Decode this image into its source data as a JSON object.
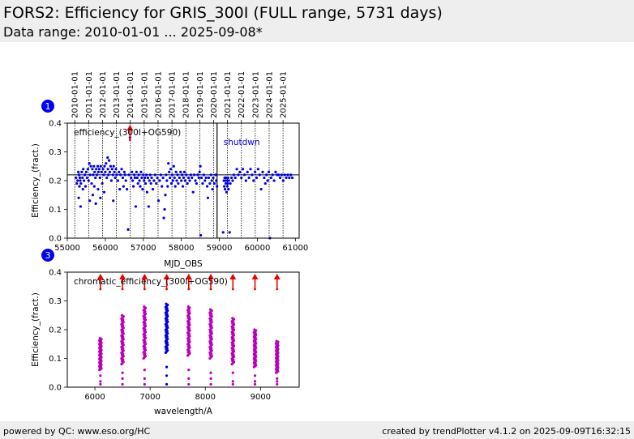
{
  "header": {
    "title": "FORS2: Efficiency for GRIS_300I (FULL range, 5731 days)",
    "subtitle": "Data range: 2010-01-01 ... 2025-09-08*"
  },
  "footer": {
    "left": "powered by QC: www.eso.org/HC",
    "right": "created by trendPlotter v4.1.2 on 2025-09-09T16:32:15"
  },
  "colors": {
    "blue": "#0000dd",
    "magenta": "#bb00bb",
    "red": "#ee0000",
    "badge": "#0000ee"
  },
  "chart_data": [
    {
      "type": "scatter",
      "badge": "1",
      "annotation": "efficiency_(300I+OG590)",
      "event_label": "shutdwn",
      "xlabel": "MJD_OBS",
      "ylabel": "Efficiency_(fract.)",
      "xlim": [
        55000,
        61100
      ],
      "ylim": [
        0,
        0.4
      ],
      "xticks": [
        55000,
        56000,
        57000,
        58000,
        59000,
        60000,
        61000
      ],
      "yticks": [
        0.0,
        0.1,
        0.2,
        0.3,
        0.4
      ],
      "reference_line": 0.22,
      "event_line_mjd": 58940,
      "upper_outlier_mjd": 56650,
      "year_markers": [
        {
          "label": "2010-01-01",
          "mjd": 55197
        },
        {
          "label": "2011-01-01",
          "mjd": 55562
        },
        {
          "label": "2012-01-01",
          "mjd": 55927
        },
        {
          "label": "2013-01-01",
          "mjd": 56293
        },
        {
          "label": "2014-01-01",
          "mjd": 56658
        },
        {
          "label": "2015-01-01",
          "mjd": 57023
        },
        {
          "label": "2016-01-01",
          "mjd": 57388
        },
        {
          "label": "2017-01-01",
          "mjd": 57754
        },
        {
          "label": "2018-01-01",
          "mjd": 58119
        },
        {
          "label": "2019-01-01",
          "mjd": 58484
        },
        {
          "label": "2020-01-01",
          "mjd": 58849
        },
        {
          "label": "2021-01-01",
          "mjd": 59215
        },
        {
          "label": "2022-01-01",
          "mjd": 59580
        },
        {
          "label": "2023-01-01",
          "mjd": 59945
        },
        {
          "label": "2024-01-01",
          "mjd": 60310
        },
        {
          "label": "2025-01-01",
          "mjd": 60676
        }
      ],
      "points": [
        [
          55230,
          0.21
        ],
        [
          55250,
          0.19
        ],
        [
          55270,
          0.2
        ],
        [
          55290,
          0.23
        ],
        [
          55300,
          0.14
        ],
        [
          55310,
          0.22
        ],
        [
          55320,
          0.18
        ],
        [
          55330,
          0.21
        ],
        [
          55340,
          0.2
        ],
        [
          55350,
          0.11
        ],
        [
          55360,
          0.19
        ],
        [
          55380,
          0.23
        ],
        [
          55400,
          0.21
        ],
        [
          55410,
          0.17
        ],
        [
          55420,
          0.24
        ],
        [
          55440,
          0.2
        ],
        [
          55460,
          0.22
        ],
        [
          55480,
          0.18
        ],
        [
          55500,
          0.23
        ],
        [
          55520,
          0.21
        ],
        [
          55540,
          0.24
        ],
        [
          55560,
          0.2
        ],
        [
          55580,
          0.26
        ],
        [
          55590,
          0.13
        ],
        [
          55600,
          0.22
        ],
        [
          55620,
          0.25
        ],
        [
          55640,
          0.19
        ],
        [
          55660,
          0.24
        ],
        [
          55670,
          0.15
        ],
        [
          55680,
          0.22
        ],
        [
          55700,
          0.25
        ],
        [
          55710,
          0.18
        ],
        [
          55720,
          0.23
        ],
        [
          55740,
          0.21
        ],
        [
          55750,
          0.12
        ],
        [
          55760,
          0.24
        ],
        [
          55780,
          0.22
        ],
        [
          55800,
          0.25
        ],
        [
          55810,
          0.17
        ],
        [
          55820,
          0.23
        ],
        [
          55840,
          0.24
        ],
        [
          55860,
          0.21
        ],
        [
          55870,
          0.14
        ],
        [
          55880,
          0.25
        ],
        [
          55900,
          0.23
        ],
        [
          55920,
          0.19
        ],
        [
          55940,
          0.24
        ],
        [
          55960,
          0.22
        ],
        [
          55970,
          0.16
        ],
        [
          55980,
          0.25
        ],
        [
          56000,
          0.23
        ],
        [
          56020,
          0.26
        ],
        [
          56040,
          0.21
        ],
        [
          56060,
          0.28
        ],
        [
          56070,
          0.24
        ],
        [
          56080,
          0.22
        ],
        [
          56100,
          0.27
        ],
        [
          56120,
          0.23
        ],
        [
          56140,
          0.25
        ],
        [
          56160,
          0.2
        ],
        [
          56180,
          0.24
        ],
        [
          56200,
          0.22
        ],
        [
          56210,
          0.13
        ],
        [
          56220,
          0.25
        ],
        [
          56240,
          0.23
        ],
        [
          56260,
          0.21
        ],
        [
          56280,
          0.24
        ],
        [
          56300,
          0.22
        ],
        [
          56330,
          0.2
        ],
        [
          56360,
          0.23
        ],
        [
          56380,
          0.17
        ],
        [
          56400,
          0.22
        ],
        [
          56430,
          0.24
        ],
        [
          56460,
          0.21
        ],
        [
          56480,
          0.18
        ],
        [
          56500,
          0.23
        ],
        [
          56520,
          0.22
        ],
        [
          56540,
          0.2
        ],
        [
          56570,
          0.17
        ],
        [
          56600,
          0.03
        ],
        [
          56620,
          0.22
        ],
        [
          56650,
          0.35
        ],
        [
          56680,
          0.21
        ],
        [
          56700,
          0.23
        ],
        [
          56720,
          0.2
        ],
        [
          56740,
          0.18
        ],
        [
          56760,
          0.22
        ],
        [
          56780,
          0.21
        ],
        [
          56800,
          0.11
        ],
        [
          56820,
          0.23
        ],
        [
          56840,
          0.21
        ],
        [
          56860,
          0.19
        ],
        [
          56880,
          0.22
        ],
        [
          56900,
          0.2
        ],
        [
          56920,
          0.18
        ],
        [
          56940,
          0.23
        ],
        [
          56960,
          0.21
        ],
        [
          56980,
          0.17
        ],
        [
          57000,
          0.22
        ],
        [
          57020,
          0.2
        ],
        [
          57040,
          0.21
        ],
        [
          57060,
          0.19
        ],
        [
          57080,
          0.22
        ],
        [
          57100,
          0.16
        ],
        [
          57120,
          0.21
        ],
        [
          57140,
          0.11
        ],
        [
          57160,
          0.2
        ],
        [
          57180,
          0.22
        ],
        [
          57200,
          0.19
        ],
        [
          57220,
          0.21
        ],
        [
          57250,
          0.17
        ],
        [
          57280,
          0.2
        ],
        [
          57310,
          0.22
        ],
        [
          57340,
          0.19
        ],
        [
          57370,
          0.21
        ],
        [
          57400,
          0.13
        ],
        [
          57430,
          0.2
        ],
        [
          57460,
          0.22
        ],
        [
          57490,
          0.18
        ],
        [
          57520,
          0.21
        ],
        [
          57540,
          0.07
        ],
        [
          57560,
          0.1
        ],
        [
          57580,
          0.15
        ],
        [
          57600,
          0.22
        ],
        [
          57620,
          0.2
        ],
        [
          57640,
          0.18
        ],
        [
          57660,
          0.26
        ],
        [
          57680,
          0.23
        ],
        [
          57700,
          0.21
        ],
        [
          57720,
          0.24
        ],
        [
          57740,
          0.19
        ],
        [
          57760,
          0.22
        ],
        [
          57780,
          0.2
        ],
        [
          57800,
          0.25
        ],
        [
          57820,
          0.21
        ],
        [
          57840,
          0.18
        ],
        [
          57860,
          0.23
        ],
        [
          57880,
          0.2
        ],
        [
          57900,
          0.22
        ],
        [
          57920,
          0.19
        ],
        [
          57950,
          0.21
        ],
        [
          57980,
          0.23
        ],
        [
          58000,
          0.2
        ],
        [
          58020,
          0.22
        ],
        [
          58040,
          0.18
        ],
        [
          58060,
          0.21
        ],
        [
          58080,
          0.23
        ],
        [
          58100,
          0.2
        ],
        [
          58130,
          0.22
        ],
        [
          58160,
          0.19
        ],
        [
          58190,
          0.21
        ],
        [
          58220,
          0.2
        ],
        [
          58250,
          0.22
        ],
        [
          58280,
          0.21
        ],
        [
          58310,
          0.16
        ],
        [
          58340,
          0.22
        ],
        [
          58370,
          0.2
        ],
        [
          58400,
          0.19
        ],
        [
          58430,
          0.22
        ],
        [
          58460,
          0.21
        ],
        [
          58480,
          0.23
        ],
        [
          58500,
          0.25
        ],
        [
          58510,
          0.01
        ],
        [
          58530,
          0.21
        ],
        [
          58560,
          0.19
        ],
        [
          58590,
          0.22
        ],
        [
          58620,
          0.2
        ],
        [
          58650,
          0.21
        ],
        [
          58680,
          0.18
        ],
        [
          58700,
          0.14
        ],
        [
          58720,
          0.21
        ],
        [
          58750,
          0.19
        ],
        [
          58780,
          0.22
        ],
        [
          58800,
          0.2
        ],
        [
          58820,
          0.17
        ],
        [
          58840,
          0.21
        ],
        [
          58870,
          0.19
        ],
        [
          58900,
          0.22
        ],
        [
          58920,
          0.2
        ],
        [
          58940,
          0.18
        ],
        [
          59100,
          0.02
        ],
        [
          59120,
          0.2
        ],
        [
          59130,
          0.18
        ],
        [
          59140,
          0.21
        ],
        [
          59150,
          0.17
        ],
        [
          59160,
          0.2
        ],
        [
          59170,
          0.19
        ],
        [
          59180,
          0.21
        ],
        [
          59190,
          0.16
        ],
        [
          59200,
          0.2
        ],
        [
          59210,
          0.18
        ],
        [
          59220,
          0.19
        ],
        [
          59230,
          0.21
        ],
        [
          59240,
          0.17
        ],
        [
          59250,
          0.2
        ],
        [
          59270,
          0.02
        ],
        [
          59290,
          0.19
        ],
        [
          59320,
          0.21
        ],
        [
          59350,
          0.2
        ],
        [
          59380,
          0.22
        ],
        [
          59420,
          0.21
        ],
        [
          59460,
          0.24
        ],
        [
          59500,
          0.22
        ],
        [
          59540,
          0.23
        ],
        [
          59580,
          0.21
        ],
        [
          59620,
          0.24
        ],
        [
          59660,
          0.22
        ],
        [
          59700,
          0.2
        ],
        [
          59740,
          0.23
        ],
        [
          59780,
          0.21
        ],
        [
          59820,
          0.24
        ],
        [
          59860,
          0.22
        ],
        [
          59900,
          0.2
        ],
        [
          59940,
          0.23
        ],
        [
          59980,
          0.21
        ],
        [
          60020,
          0.24
        ],
        [
          60060,
          0.22
        ],
        [
          60100,
          0.17
        ],
        [
          60140,
          0.23
        ],
        [
          60180,
          0.21
        ],
        [
          60210,
          0.19
        ],
        [
          60240,
          0.22
        ],
        [
          60270,
          0.2
        ],
        [
          60300,
          0.23
        ],
        [
          60330,
          0.0
        ],
        [
          60360,
          0.21
        ],
        [
          60400,
          0.22
        ],
        [
          60440,
          0.2
        ],
        [
          60480,
          0.23
        ],
        [
          60520,
          0.22
        ],
        [
          60560,
          0.22
        ],
        [
          60600,
          0.21
        ],
        [
          60640,
          0.22
        ],
        [
          60680,
          0.2
        ],
        [
          60720,
          0.22
        ],
        [
          60760,
          0.21
        ],
        [
          60800,
          0.22
        ],
        [
          60840,
          0.21
        ],
        [
          60880,
          0.22
        ],
        [
          60920,
          0.21
        ]
      ]
    },
    {
      "type": "scatter",
      "badge": "3",
      "annotation": "chromatic_efficiency_(300I+OG590)",
      "xlabel": "wavelength/A",
      "ylabel": "Efficiency_(fract.)",
      "xlim": [
        5500,
        9700
      ],
      "ylim": [
        0,
        0.4
      ],
      "xticks": [
        6000,
        7000,
        8000,
        9000
      ],
      "yticks": [
        0.0,
        0.1,
        0.2,
        0.3,
        0.4
      ],
      "highlight_wavelength": 7300,
      "wavelength_columns": [
        {
          "wavelength": 6100,
          "min": 0.06,
          "max": 0.17,
          "outliers": [
            0.01,
            0.02,
            0.04
          ]
        },
        {
          "wavelength": 6500,
          "min": 0.08,
          "max": 0.25,
          "outliers": [
            0.01,
            0.03,
            0.05
          ]
        },
        {
          "wavelength": 6900,
          "min": 0.1,
          "max": 0.28,
          "outliers": [
            0.01,
            0.03,
            0.06
          ]
        },
        {
          "wavelength": 7300,
          "min": 0.12,
          "max": 0.29,
          "outliers": [
            0.01,
            0.04,
            0.07
          ]
        },
        {
          "wavelength": 7700,
          "min": 0.11,
          "max": 0.28,
          "outliers": [
            0.01,
            0.03,
            0.06
          ]
        },
        {
          "wavelength": 8100,
          "min": 0.1,
          "max": 0.27,
          "outliers": [
            0.01,
            0.03,
            0.05
          ]
        },
        {
          "wavelength": 8500,
          "min": 0.08,
          "max": 0.24,
          "outliers": [
            0.01,
            0.02,
            0.05
          ]
        },
        {
          "wavelength": 8900,
          "min": 0.07,
          "max": 0.2,
          "outliers": [
            0.01,
            0.02,
            0.04
          ]
        },
        {
          "wavelength": 9300,
          "min": 0.05,
          "max": 0.16,
          "outliers": [
            0.01,
            0.02,
            0.03
          ]
        }
      ],
      "upper_arrow_wavelengths": [
        6100,
        6500,
        6900,
        7300,
        7700,
        8100,
        8500,
        8900,
        9300
      ]
    }
  ]
}
